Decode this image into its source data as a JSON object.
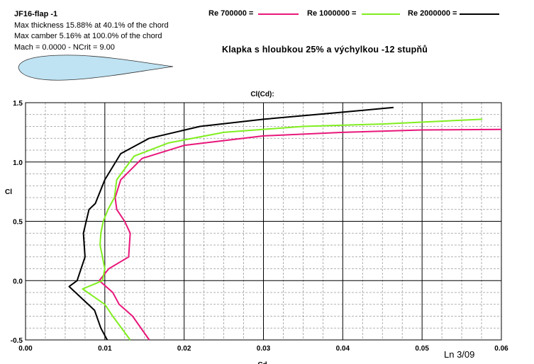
{
  "airfoil": {
    "name": "JF16-flap -1",
    "thickness": "Max thickness 15.88% at 40.1% of the chord",
    "camber": "Max camber 5.16% at 100.0% of the chord",
    "mach_ncrit": "Mach = 0.0000 - NCrit = 9.00"
  },
  "subtitle": "Klapka s hloubkou 25% a výchylkou -12 stupňů",
  "footnote": "Ln 3/09",
  "colors": {
    "background": "#ffffff",
    "airfoil_fill": "#bfe3f3",
    "grid_major": "#000000",
    "grid_minor": "#9a9a9a"
  },
  "chart_data": {
    "type": "line",
    "title": "Cl(Cd):",
    "xlabel": "Cd",
    "ylabel": "Cl",
    "xlim": [
      0,
      0.06
    ],
    "ylim": [
      -0.5,
      1.5
    ],
    "x_ticks": [
      "0.00",
      "0.01",
      "0.02",
      "0.03",
      "0.04",
      "0.05",
      "0.06"
    ],
    "y_ticks": [
      "-0.5",
      "0.0",
      "0.5",
      "1.0",
      "1.5"
    ],
    "grid": true,
    "legend_position": "top",
    "series": [
      {
        "name": "Re 700000 =",
        "color": "#e8177a",
        "points": [
          [
            0.0156,
            -0.5
          ],
          [
            0.0135,
            -0.3
          ],
          [
            0.0118,
            -0.2
          ],
          [
            0.011,
            -0.1
          ],
          [
            0.0093,
            0.0
          ],
          [
            0.0105,
            0.1
          ],
          [
            0.013,
            0.2
          ],
          [
            0.0131,
            0.3
          ],
          [
            0.0132,
            0.4
          ],
          [
            0.0125,
            0.5
          ],
          [
            0.0115,
            0.6
          ],
          [
            0.0113,
            0.7
          ],
          [
            0.012,
            0.85
          ],
          [
            0.0147,
            1.03
          ],
          [
            0.02,
            1.14
          ],
          [
            0.03,
            1.22
          ],
          [
            0.04,
            1.25
          ],
          [
            0.05,
            1.27
          ],
          [
            0.06,
            1.275
          ]
        ]
      },
      {
        "name": "Re 1000000 =",
        "color": "#80ee1f",
        "points": [
          [
            0.0132,
            -0.5
          ],
          [
            0.011,
            -0.3
          ],
          [
            0.01,
            -0.2
          ],
          [
            0.0072,
            -0.07
          ],
          [
            0.0097,
            0.0
          ],
          [
            0.01,
            0.1
          ],
          [
            0.0097,
            0.2
          ],
          [
            0.0094,
            0.3
          ],
          [
            0.0095,
            0.4
          ],
          [
            0.0098,
            0.5
          ],
          [
            0.0104,
            0.6
          ],
          [
            0.0112,
            0.7
          ],
          [
            0.0115,
            0.85
          ],
          [
            0.0137,
            1.05
          ],
          [
            0.018,
            1.16
          ],
          [
            0.025,
            1.25
          ],
          [
            0.035,
            1.3
          ],
          [
            0.045,
            1.32
          ],
          [
            0.0576,
            1.36
          ]
        ]
      },
      {
        "name": "Re 2000000 =",
        "color": "#000000",
        "points": [
          [
            0.0103,
            -0.5
          ],
          [
            0.0095,
            -0.4
          ],
          [
            0.0087,
            -0.25
          ],
          [
            0.0055,
            -0.05
          ],
          [
            0.0065,
            0.0
          ],
          [
            0.0075,
            0.2
          ],
          [
            0.0073,
            0.4
          ],
          [
            0.008,
            0.6
          ],
          [
            0.0088,
            0.65
          ],
          [
            0.01,
            0.85
          ],
          [
            0.012,
            1.07
          ],
          [
            0.0156,
            1.2
          ],
          [
            0.022,
            1.3
          ],
          [
            0.03,
            1.36
          ],
          [
            0.04,
            1.42
          ],
          [
            0.0464,
            1.46
          ]
        ]
      }
    ]
  }
}
